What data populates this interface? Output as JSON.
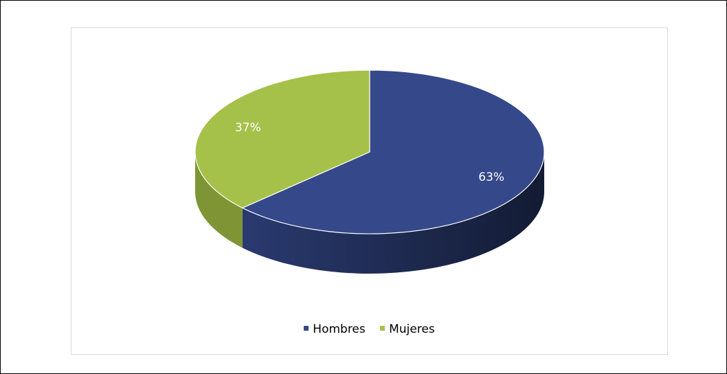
{
  "chart_data": {
    "type": "pie",
    "title": "",
    "style": "3d",
    "legend_position": "bottom",
    "slices": [
      {
        "name": "Hombres",
        "value": 63,
        "label": "63%",
        "color": "#35488a",
        "side_color": "#1b2645"
      },
      {
        "name": "Mujeres",
        "value": 37,
        "label": "37%",
        "color": "#a6c14a",
        "side_color": "#7f9535"
      }
    ]
  }
}
